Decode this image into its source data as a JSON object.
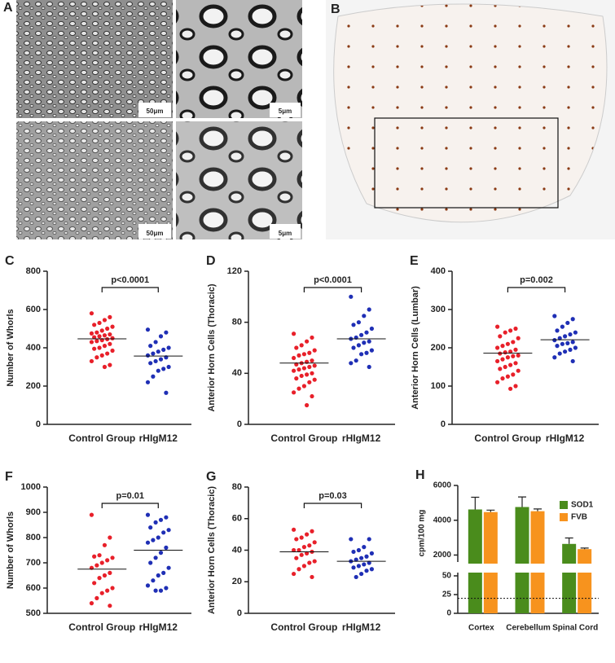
{
  "images": [
    {
      "panel": "A",
      "scale_bars": [
        "50μm",
        "5μm",
        "50μm",
        "5μm"
      ]
    },
    {
      "panel": "B"
    }
  ],
  "chart_data": [
    {
      "type": "dotplot",
      "panel": "C",
      "ylabel": "Number of Whorls",
      "ylim": [
        0,
        800
      ],
      "yticks": [
        0,
        200,
        400,
        600,
        800
      ],
      "annotation": "p<0.0001",
      "groups": [
        {
          "name": "Control Group",
          "color": "#e8202a",
          "mean": 447,
          "values": [
            580,
            560,
            545,
            530,
            520,
            510,
            500,
            490,
            480,
            475,
            470,
            465,
            460,
            455,
            450,
            445,
            440,
            435,
            430,
            420,
            410,
            400,
            395,
            385,
            370,
            360,
            350,
            330,
            310,
            300
          ]
        },
        {
          "name": "rHIgM12",
          "color": "#1f2fb5",
          "mean": 357,
          "values": [
            495,
            480,
            460,
            430,
            410,
            400,
            390,
            380,
            370,
            360,
            350,
            340,
            330,
            320,
            300,
            290,
            280,
            250,
            220,
            165
          ]
        }
      ]
    },
    {
      "type": "dotplot",
      "panel": "D",
      "ylabel": "Anterior Horn Cells (Thoracic)",
      "ylim": [
        0,
        120
      ],
      "yticks": [
        0,
        40,
        80,
        120
      ],
      "annotation": "p<0.0001",
      "groups": [
        {
          "name": "Control Group",
          "color": "#e8202a",
          "mean": 48,
          "values": [
            71,
            68,
            65,
            62,
            60,
            58,
            56,
            55,
            54,
            52,
            50,
            49,
            48,
            47,
            46,
            45,
            44,
            43,
            42,
            40,
            39,
            38,
            36,
            35,
            33,
            30,
            28,
            25,
            22,
            15
          ]
        },
        {
          "name": "rHIgM12",
          "color": "#1f2fb5",
          "mean": 67,
          "values": [
            100,
            90,
            85,
            80,
            78,
            75,
            72,
            70,
            68,
            67,
            65,
            64,
            62,
            60,
            58,
            56,
            55,
            50,
            48,
            45
          ]
        }
      ]
    },
    {
      "type": "dotplot",
      "panel": "E",
      "ylabel": "Anterior Horn Cells (Lumbar)",
      "ylim": [
        0,
        400
      ],
      "yticks": [
        0,
        100,
        200,
        300,
        400
      ],
      "annotation": "p=0.002",
      "groups": [
        {
          "name": "Control Group",
          "color": "#e8202a",
          "mean": 186,
          "values": [
            255,
            250,
            245,
            240,
            230,
            225,
            215,
            210,
            205,
            200,
            195,
            190,
            188,
            185,
            180,
            178,
            175,
            170,
            165,
            160,
            155,
            150,
            145,
            140,
            130,
            125,
            120,
            110,
            100,
            93
          ]
        },
        {
          "name": "rHIgM12",
          "color": "#1f2fb5",
          "mean": 221,
          "values": [
            283,
            275,
            265,
            255,
            245,
            240,
            235,
            230,
            225,
            220,
            215,
            212,
            210,
            205,
            200,
            195,
            190,
            185,
            175,
            165
          ]
        }
      ]
    },
    {
      "type": "dotplot",
      "panel": "F",
      "ylabel": "Number of Whorls",
      "ylim": [
        500,
        1000
      ],
      "yticks": [
        500,
        600,
        700,
        800,
        900,
        1000
      ],
      "annotation": "p=0.01",
      "groups": [
        {
          "name": "Control Group",
          "color": "#e8202a",
          "mean": 675,
          "values": [
            890,
            800,
            770,
            730,
            725,
            720,
            710,
            700,
            690,
            680,
            660,
            650,
            640,
            620,
            600,
            590,
            580,
            560,
            540,
            530
          ]
        },
        {
          "name": "rHIgM12",
          "color": "#1f2fb5",
          "mean": 750,
          "values": [
            890,
            880,
            870,
            860,
            840,
            830,
            820,
            800,
            790,
            780,
            760,
            740,
            720,
            700,
            680,
            660,
            650,
            630,
            610,
            600,
            590,
            590
          ]
        }
      ]
    },
    {
      "type": "dotplot",
      "panel": "G",
      "ylabel": "Anterior Horn Cells (Thoracic)",
      "ylim": [
        0,
        80
      ],
      "yticks": [
        0,
        20,
        40,
        60,
        80
      ],
      "annotation": "p=0.03",
      "groups": [
        {
          "name": "Control Group",
          "color": "#e8202a",
          "mean": 39,
          "values": [
            53,
            52,
            50,
            48,
            47,
            45,
            43,
            42,
            40,
            40,
            39,
            38,
            37,
            35,
            33,
            32,
            30,
            28,
            25,
            23
          ]
        },
        {
          "name": "rHIgM12",
          "color": "#1f2fb5",
          "mean": 33,
          "values": [
            47,
            47,
            42,
            40,
            39,
            38,
            36,
            35,
            34,
            33,
            32,
            31,
            30,
            29,
            28,
            27,
            25,
            23
          ]
        }
      ]
    },
    {
      "type": "brokenbar",
      "panel": "H",
      "ylabel": "cpm/100 mg",
      "categories": [
        "Cortex",
        "Cerebellum",
        "Spinal Cord"
      ],
      "ylim": [
        1600,
        6000
      ],
      "yticks": [
        2000,
        4000,
        6000
      ],
      "ylim_lower": [
        0,
        50
      ],
      "yticks_lower": [
        0,
        25,
        50
      ],
      "reference_line": 20,
      "legend": "upper right",
      "series": [
        {
          "name": "SOD1",
          "color": "#4a8c1c",
          "values": [
            4620,
            4760,
            2640
          ],
          "errors": [
            700,
            580,
            340
          ]
        },
        {
          "name": "FVB",
          "color": "#f7931e",
          "values": [
            4470,
            4520,
            2340
          ],
          "errors": [
            110,
            130,
            60
          ]
        }
      ]
    }
  ]
}
